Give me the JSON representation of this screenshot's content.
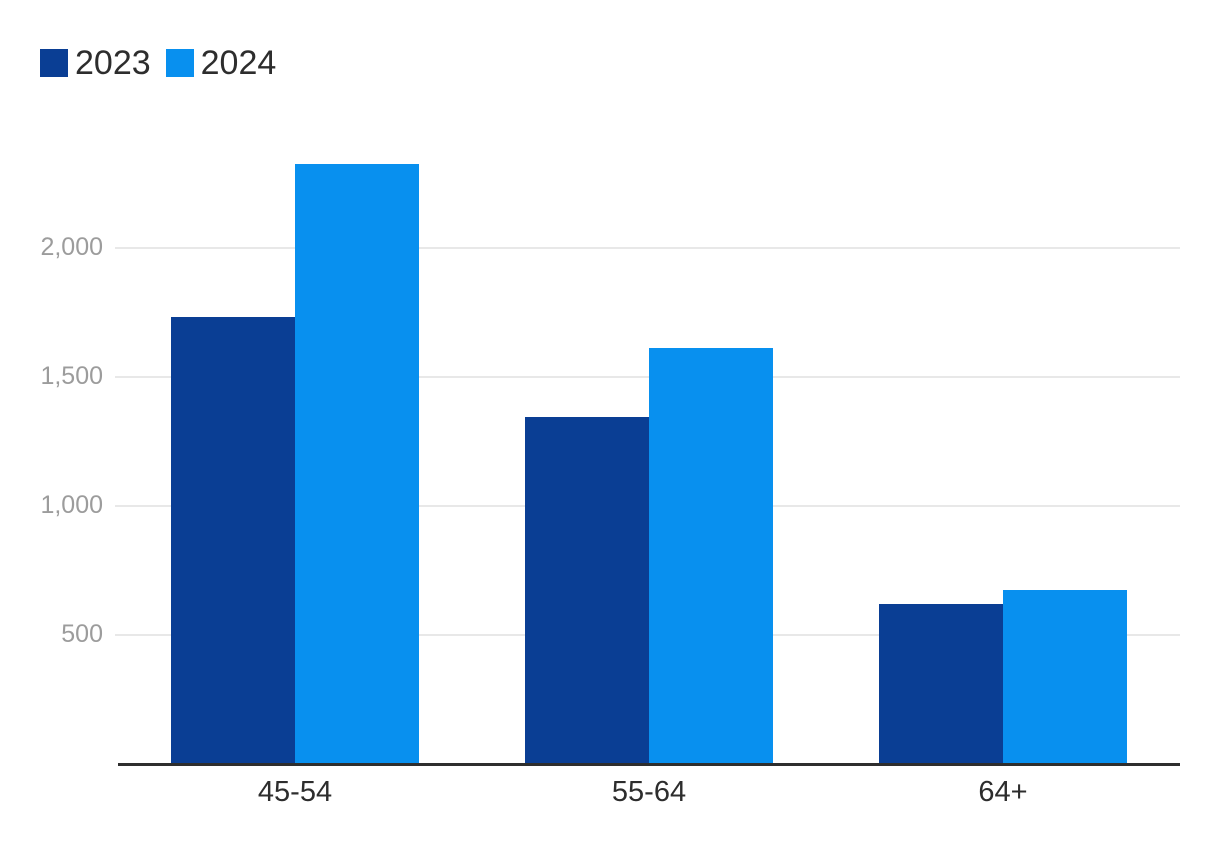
{
  "colors": {
    "series_2023": "#0a3e94",
    "series_2024": "#0890ef",
    "gridline": "#e8e8e8",
    "axis_line": "#2e2e2e",
    "y_tick_label": "#9c9c9c",
    "x_tick_label": "#2d2d2d",
    "legend_label": "#2d2d2d",
    "background": "#ffffff"
  },
  "legend": {
    "items": [
      {
        "label": "2023",
        "color": "#0a3e94"
      },
      {
        "label": "2024",
        "color": "#0890ef"
      }
    ]
  },
  "chart_data": {
    "type": "bar",
    "title": "",
    "categories": [
      "45-54",
      "55-64",
      "64+"
    ],
    "series": [
      {
        "name": "2023",
        "values": [
          1730,
          1340,
          615
        ]
      },
      {
        "name": "2024",
        "values": [
          2320,
          1610,
          670
        ]
      }
    ],
    "y_ticks": [
      {
        "value": 500,
        "label": "500"
      },
      {
        "value": 1000,
        "label": "1,000"
      },
      {
        "value": 1500,
        "label": "1,500"
      },
      {
        "value": 2000,
        "label": "2,000"
      }
    ],
    "ylim": [
      0,
      2500
    ],
    "xlabel": "",
    "ylabel": "",
    "grid": "horizontal",
    "legend_position": "top-left"
  }
}
